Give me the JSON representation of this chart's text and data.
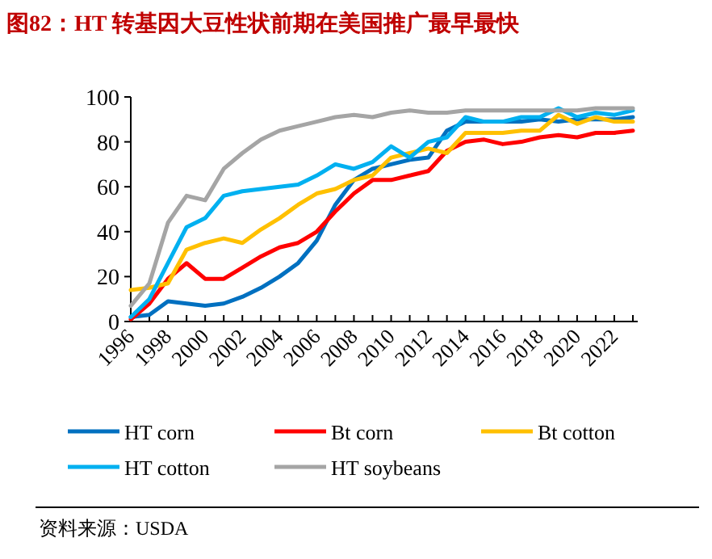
{
  "chart_data": {
    "type": "line",
    "title": "图82：HT 转基因大豆性状前期在美国推广最早最快",
    "categories": [
      "1996",
      null,
      "1998",
      null,
      "2000",
      null,
      "2002",
      null,
      "2004",
      null,
      "2006",
      null,
      "2008",
      null,
      "2010",
      null,
      "2012",
      null,
      "2014",
      null,
      "2016",
      null,
      "2018",
      null,
      "2020",
      null,
      "2022",
      null
    ],
    "ylim": [
      0,
      100
    ],
    "yticks": [
      0,
      20,
      40,
      60,
      80,
      100
    ],
    "grid": false,
    "legend": "bottom",
    "marker": "none",
    "line_style": "solid",
    "series": [
      {
        "name": "HT corn",
        "color": "#0070c0",
        "values": [
          2,
          3,
          9,
          8,
          7,
          8,
          11,
          15,
          20,
          26,
          36,
          52,
          63,
          68,
          70,
          72,
          73,
          85,
          89,
          89,
          89,
          89,
          90,
          89,
          90,
          90,
          90,
          91
        ]
      },
      {
        "name": "Bt corn",
        "color": "#ff0000",
        "values": [
          1,
          8,
          19,
          26,
          19,
          19,
          24,
          29,
          33,
          35,
          40,
          49,
          57,
          63,
          63,
          65,
          67,
          76,
          80,
          81,
          79,
          80,
          82,
          83,
          82,
          84,
          84,
          85
        ]
      },
      {
        "name": "Bt cotton",
        "color": "#ffc000",
        "values": [
          14,
          15,
          17,
          32,
          35,
          37,
          35,
          41,
          46,
          52,
          57,
          59,
          63,
          65,
          73,
          75,
          77,
          75,
          84,
          84,
          84,
          85,
          85,
          92,
          88,
          91,
          89,
          89
        ]
      },
      {
        "name": "HT cotton",
        "color": "#00b0f0",
        "values": [
          2,
          10,
          26,
          42,
          46,
          56,
          58,
          59,
          60,
          61,
          65,
          70,
          68,
          71,
          78,
          73,
          80,
          82,
          91,
          89,
          89,
          91,
          91,
          95,
          91,
          93,
          92,
          94
        ]
      },
      {
        "name": "HT soybeans",
        "color": "#a5a5a5",
        "values": [
          7,
          17,
          44,
          56,
          54,
          68,
          75,
          81,
          85,
          87,
          89,
          91,
          92,
          91,
          93,
          94,
          93,
          93,
          94,
          94,
          94,
          94,
          94,
          94,
          94,
          95,
          95,
          95
        ]
      }
    ],
    "annotations": [
      "资料来源：USDA"
    ]
  }
}
